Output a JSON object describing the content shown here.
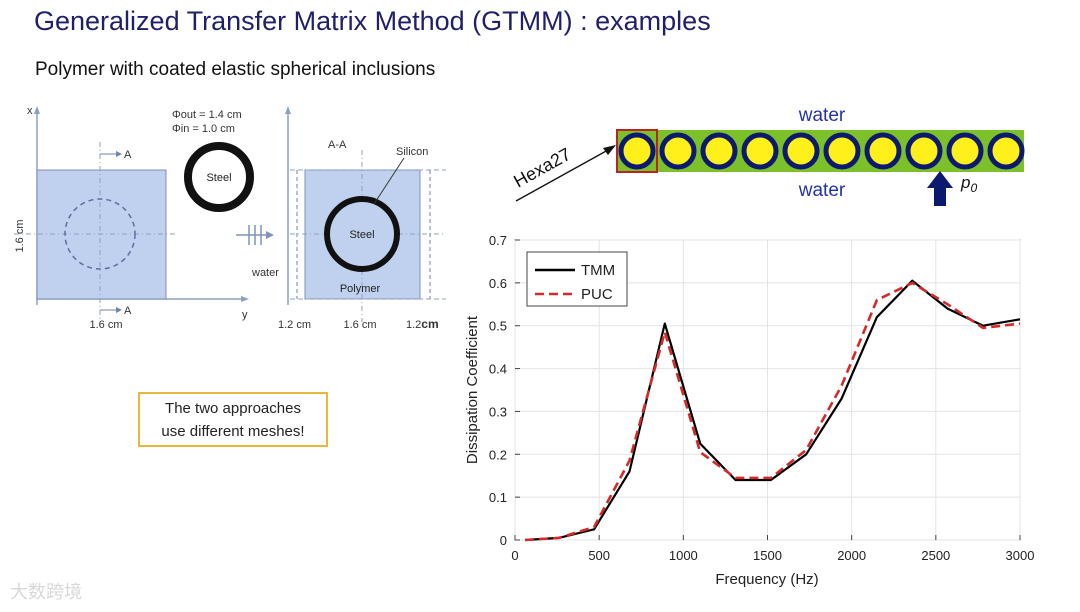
{
  "slide": {
    "title": "Generalized Transfer Matrix Method (GTMM) : examples",
    "subtitle": "Polymer with coated elastic spherical inclusions"
  },
  "left_diagram": {
    "axis_x": "x",
    "axis_y": "y",
    "phi_out": "Φout = 1.4 cm",
    "phi_in": "Φin  = 1.0 cm",
    "steel_label": "Steel",
    "section_top": "A",
    "section_bottom": "A",
    "height_label": "1.6 cm",
    "width_label": "1.6 cm"
  },
  "right_diagram": {
    "section_label": "A-A",
    "silicon_label": "Silicon",
    "steel_label": "Steel",
    "polymer_label": "Polymer",
    "water_label": "water",
    "dim_left": "1.2 cm",
    "dim_middle": "1.6 cm",
    "dim_right_value": "1.2",
    "dim_right_unit": "cm"
  },
  "note": {
    "line1": "The two approaches",
    "line2": "use different meshes!"
  },
  "chain": {
    "water_top": "water",
    "water_bottom": "water",
    "mesh_label": "Hexa27",
    "pressure_label": "p",
    "pressure_sub": "0",
    "inclusion_count": 10
  },
  "chart_data": {
    "type": "line",
    "xlabel": "Frequency (Hz)",
    "ylabel": "Dissipation Coefficient",
    "xlim": [
      0,
      3000
    ],
    "ylim": [
      0,
      0.7
    ],
    "xticks": [
      0,
      500,
      1000,
      1500,
      2000,
      2500,
      3000
    ],
    "yticks": [
      0,
      0.1,
      0.2,
      0.3,
      0.4,
      0.5,
      0.6,
      0.7
    ],
    "grid": true,
    "legend_position": "top-left",
    "series": [
      {
        "name": "TMM",
        "color": "#000000",
        "style": "solid",
        "x": [
          60,
          260,
          470,
          680,
          890,
          1100,
          1310,
          1520,
          1730,
          1940,
          2150,
          2360,
          2570,
          2780,
          3000
        ],
        "y": [
          0.0,
          0.005,
          0.025,
          0.16,
          0.505,
          0.225,
          0.14,
          0.14,
          0.2,
          0.33,
          0.52,
          0.605,
          0.54,
          0.5,
          0.515
        ]
      },
      {
        "name": "PUC",
        "color": "#d42a2a",
        "style": "dashed",
        "x": [
          60,
          260,
          470,
          680,
          890,
          1100,
          1310,
          1520,
          1730,
          1940,
          2150,
          2360,
          2570,
          2780,
          3000
        ],
        "y": [
          0.0,
          0.005,
          0.03,
          0.185,
          0.485,
          0.205,
          0.145,
          0.145,
          0.21,
          0.36,
          0.56,
          0.6,
          0.55,
          0.495,
          0.505
        ]
      }
    ]
  },
  "watermark": "大数跨境"
}
